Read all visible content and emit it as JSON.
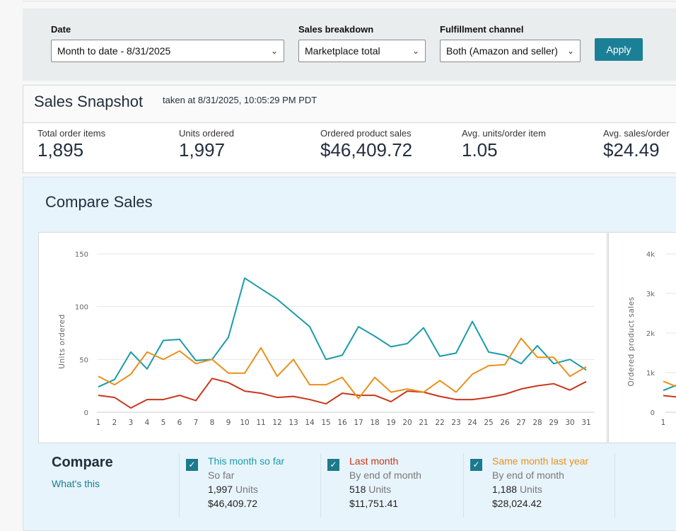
{
  "filters": {
    "date": {
      "label": "Date",
      "value": "Month to date - 8/31/2025"
    },
    "breakdown": {
      "label": "Sales breakdown",
      "value": "Marketplace total"
    },
    "channel": {
      "label": "Fulfillment channel",
      "value": "Both (Amazon and seller)"
    },
    "apply_label": "Apply"
  },
  "snapshot": {
    "title": "Sales Snapshot",
    "taken": "taken at 8/31/2025, 10:05:29 PM PDT",
    "metrics": [
      {
        "label": "Total order items",
        "value": "1,895"
      },
      {
        "label": "Units ordered",
        "value": "1,997"
      },
      {
        "label": "Ordered product sales",
        "value": "$46,409.72"
      },
      {
        "label": "Avg. units/order item",
        "value": "1.05"
      },
      {
        "label": "Avg. sales/order",
        "value": "$24.49"
      }
    ]
  },
  "compare": {
    "title": "Compare Sales",
    "legend_title": "Compare",
    "whats_this": "What's this",
    "series_legend": [
      {
        "name": "This month so far",
        "sub": "So far",
        "units": "1,997",
        "units_label": "Units",
        "sales": "$46,409.72",
        "color": "#1a9ba8",
        "checked": true
      },
      {
        "name": "Last month",
        "sub": "By end of month",
        "units": "518",
        "units_label": "Units",
        "sales": "$11,751.41",
        "color": "#c9361b",
        "checked": true
      },
      {
        "name": "Same month last year",
        "sub": "By end of month",
        "units": "1,188",
        "units_label": "Units",
        "sales": "$28,024.42",
        "color": "#e8901a",
        "checked": true
      }
    ]
  },
  "chart_data": [
    {
      "type": "line",
      "title": "",
      "xlabel": "",
      "ylabel": "Units ordered",
      "ylim": [
        0,
        150
      ],
      "yticks": [
        "0",
        "50",
        "100",
        "150"
      ],
      "grid": true,
      "x": [
        1,
        2,
        3,
        4,
        5,
        6,
        7,
        8,
        9,
        10,
        11,
        12,
        13,
        14,
        15,
        16,
        17,
        18,
        19,
        20,
        21,
        22,
        23,
        24,
        25,
        26,
        27,
        28,
        29,
        30,
        31
      ],
      "series": [
        {
          "name": "This month so far",
          "color": "#1a9ba8",
          "values": [
            24,
            31,
            57,
            41,
            68,
            69,
            49,
            50,
            71,
            127,
            117,
            107,
            94,
            81,
            50,
            54,
            81,
            72,
            62,
            65,
            80,
            53,
            56,
            86,
            57,
            54,
            46,
            63,
            46,
            50,
            40
          ]
        },
        {
          "name": "Last month",
          "color": "#c9361b",
          "values": [
            16,
            14,
            4,
            12,
            12,
            16,
            11,
            32,
            28,
            20,
            18,
            14,
            15,
            12,
            8,
            18,
            16,
            16,
            10,
            20,
            19,
            15,
            12,
            12,
            14,
            17,
            22,
            25,
            27,
            21,
            29
          ]
        },
        {
          "name": "Same month last year",
          "color": "#e8901a",
          "values": [
            34,
            26,
            36,
            57,
            50,
            58,
            46,
            50,
            37,
            37,
            61,
            34,
            50,
            26,
            26,
            33,
            13,
            33,
            19,
            22,
            19,
            30,
            19,
            36,
            44,
            45,
            70,
            52,
            52,
            34,
            43
          ]
        }
      ]
    },
    {
      "type": "line",
      "title": "",
      "ylabel": "Ordered product sales",
      "ylim": [
        0,
        4000
      ],
      "yticks": [
        "0",
        "1k",
        "2k",
        "3k",
        "4k"
      ],
      "grid": true,
      "x": [
        1
      ],
      "x_ticks_visible": [
        "1"
      ],
      "series": [
        {
          "name": "This month so far",
          "color": "#1a9ba8",
          "values": [
            550
          ]
        },
        {
          "name": "Last month",
          "color": "#c9361b",
          "values": [
            420
          ]
        },
        {
          "name": "Same month last year",
          "color": "#e8901a",
          "values": [
            780
          ]
        }
      ]
    }
  ]
}
